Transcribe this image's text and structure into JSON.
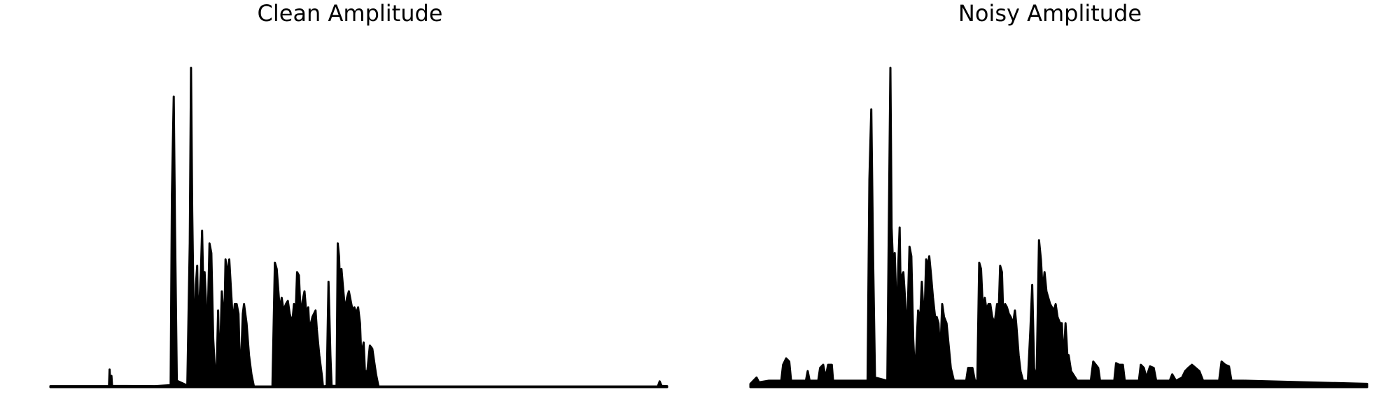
{
  "chart_data": [
    {
      "type": "area",
      "title": "Clean Amplitude",
      "xlabel": "",
      "ylabel": "",
      "axes_visible": false,
      "grid": false,
      "fill": "#000000",
      "x_range": [
        0,
        1000
      ],
      "y_range": [
        0,
        1.0
      ],
      "series": [
        {
          "values": [
            [
              0,
              0.003
            ],
            [
              95,
              0.003
            ],
            [
              96,
              0.055
            ],
            [
              97,
              0.01
            ],
            [
              99,
              0.035
            ],
            [
              100,
              0.004
            ],
            [
              170,
              0.003
            ],
            [
              195,
              0.006
            ],
            [
              197,
              0.6
            ],
            [
              200,
              0.91
            ],
            [
              202,
              0.5
            ],
            [
              205,
              0.02
            ],
            [
              222,
              0.005
            ],
            [
              226,
              0.45
            ],
            [
              228,
              1.0
            ],
            [
              230,
              0.55
            ],
            [
              233,
              0.12
            ],
            [
              236,
              0.32
            ],
            [
              238,
              0.38
            ],
            [
              240,
              0.12
            ],
            [
              242,
              0.28
            ],
            [
              244,
              0.36
            ],
            [
              246,
              0.49
            ],
            [
              248,
              0.3
            ],
            [
              250,
              0.36
            ],
            [
              252,
              0.28
            ],
            [
              254,
              0.12
            ],
            [
              258,
              0.45
            ],
            [
              261,
              0.42
            ],
            [
              264,
              0.15
            ],
            [
              268,
              0.01
            ],
            [
              270,
              0.08
            ],
            [
              272,
              0.24
            ],
            [
              274,
              0.05
            ],
            [
              276,
              0.16
            ],
            [
              278,
              0.3
            ],
            [
              282,
              0.19
            ],
            [
              284,
              0.4
            ],
            [
              287,
              0.35
            ],
            [
              290,
              0.4
            ],
            [
              293,
              0.3
            ],
            [
              296,
              0.2
            ],
            [
              299,
              0.26
            ],
            [
              302,
              0.26
            ],
            [
              305,
              0.23
            ],
            [
              308,
              0.01
            ],
            [
              312,
              0.23
            ],
            [
              314,
              0.26
            ],
            [
              318,
              0.2
            ],
            [
              322,
              0.1
            ],
            [
              326,
              0.04
            ],
            [
              330,
              0.002
            ],
            [
              360,
              0.002
            ],
            [
              364,
              0.39
            ],
            [
              367,
              0.37
            ],
            [
              372,
              0.24
            ],
            [
              375,
              0.28
            ],
            [
              378,
              0.24
            ],
            [
              382,
              0.26
            ],
            [
              385,
              0.27
            ],
            [
              388,
              0.23
            ],
            [
              392,
              0.2
            ],
            [
              395,
              0.26
            ],
            [
              397,
              0.19
            ],
            [
              400,
              0.36
            ],
            [
              403,
              0.35
            ],
            [
              406,
              0.22
            ],
            [
              409,
              0.27
            ],
            [
              412,
              0.3
            ],
            [
              415,
              0.23
            ],
            [
              418,
              0.25
            ],
            [
              420,
              0.18
            ],
            [
              425,
              0.22
            ],
            [
              430,
              0.24
            ],
            [
              432,
              0.18
            ],
            [
              436,
              0.1
            ],
            [
              440,
              0.04
            ],
            [
              442,
              0.002
            ],
            [
              448,
              0.004
            ],
            [
              451,
              0.33
            ],
            [
              454,
              0.1
            ],
            [
              456,
              0.004
            ],
            [
              464,
              0.004
            ],
            [
              466,
              0.45
            ],
            [
              468,
              0.41
            ],
            [
              470,
              0.3
            ],
            [
              472,
              0.37
            ],
            [
              475,
              0.3
            ],
            [
              478,
              0.24
            ],
            [
              481,
              0.28
            ],
            [
              484,
              0.3
            ],
            [
              487,
              0.27
            ],
            [
              490,
              0.24
            ],
            [
              493,
              0.25
            ],
            [
              496,
              0.23
            ],
            [
              499,
              0.25
            ],
            [
              502,
              0.2
            ],
            [
              504,
              0.1
            ],
            [
              508,
              0.14
            ],
            [
              510,
              0.05
            ],
            [
              514,
              0.05
            ],
            [
              518,
              0.13
            ],
            [
              522,
              0.12
            ],
            [
              525,
              0.08
            ],
            [
              528,
              0.04
            ],
            [
              532,
              0.002
            ],
            [
              985,
              0.002
            ],
            [
              988,
              0.018
            ],
            [
              991,
              0.004
            ],
            [
              1000,
              0.003
            ]
          ]
        }
      ]
    },
    {
      "type": "area",
      "title": "Noisy Amplitude",
      "xlabel": "",
      "ylabel": "",
      "axes_visible": false,
      "grid": false,
      "fill": "#000000",
      "x_range": [
        0,
        1000
      ],
      "y_range": [
        0,
        1.0
      ],
      "series": [
        {
          "values": [
            [
              0,
              0.01
            ],
            [
              10,
              0.03
            ],
            [
              14,
              0.015
            ],
            [
              30,
              0.02
            ],
            [
              50,
              0.02
            ],
            [
              53,
              0.07
            ],
            [
              58,
              0.09
            ],
            [
              63,
              0.08
            ],
            [
              66,
              0.02
            ],
            [
              90,
              0.02
            ],
            [
              93,
              0.05
            ],
            [
              96,
              0.02
            ],
            [
              110,
              0.02
            ],
            [
              113,
              0.06
            ],
            [
              118,
              0.07
            ],
            [
              122,
              0.03
            ],
            [
              126,
              0.07
            ],
            [
              132,
              0.07
            ],
            [
              134,
              0.02
            ],
            [
              190,
              0.02
            ],
            [
              193,
              0.65
            ],
            [
              196,
              0.87
            ],
            [
              199,
              0.4
            ],
            [
              202,
              0.03
            ],
            [
              222,
              0.02
            ],
            [
              225,
              0.6
            ],
            [
              227,
              1.0
            ],
            [
              229,
              0.5
            ],
            [
              232,
              0.35
            ],
            [
              234,
              0.42
            ],
            [
              236,
              0.3
            ],
            [
              238,
              0.2
            ],
            [
              240,
              0.39
            ],
            [
              242,
              0.5
            ],
            [
              244,
              0.25
            ],
            [
              246,
              0.35
            ],
            [
              248,
              0.36
            ],
            [
              250,
              0.3
            ],
            [
              254,
              0.16
            ],
            [
              258,
              0.44
            ],
            [
              261,
              0.41
            ],
            [
              264,
              0.15
            ],
            [
              267,
              0.03
            ],
            [
              272,
              0.24
            ],
            [
              275,
              0.2
            ],
            [
              278,
              0.33
            ],
            [
              282,
              0.19
            ],
            [
              285,
              0.4
            ],
            [
              288,
              0.38
            ],
            [
              290,
              0.41
            ],
            [
              293,
              0.35
            ],
            [
              296,
              0.28
            ],
            [
              300,
              0.21
            ],
            [
              302,
              0.22
            ],
            [
              305,
              0.2
            ],
            [
              308,
              0.1
            ],
            [
              311,
              0.26
            ],
            [
              314,
              0.22
            ],
            [
              318,
              0.2
            ],
            [
              322,
              0.12
            ],
            [
              325,
              0.06
            ],
            [
              330,
              0.02
            ],
            [
              350,
              0.02
            ],
            [
              353,
              0.06
            ],
            [
              360,
              0.06
            ],
            [
              364,
              0.02
            ],
            [
              368,
              0.02
            ],
            [
              371,
              0.39
            ],
            [
              374,
              0.37
            ],
            [
              377,
              0.24
            ],
            [
              380,
              0.28
            ],
            [
              383,
              0.24
            ],
            [
              386,
              0.26
            ],
            [
              389,
              0.26
            ],
            [
              392,
              0.22
            ],
            [
              396,
              0.2
            ],
            [
              400,
              0.26
            ],
            [
              402,
              0.2
            ],
            [
              405,
              0.38
            ],
            [
              408,
              0.36
            ],
            [
              410,
              0.22
            ],
            [
              413,
              0.26
            ],
            [
              416,
              0.25
            ],
            [
              419,
              0.23
            ],
            [
              422,
              0.22
            ],
            [
              426,
              0.2
            ],
            [
              429,
              0.24
            ],
            [
              431,
              0.2
            ],
            [
              435,
              0.1
            ],
            [
              438,
              0.05
            ],
            [
              442,
              0.02
            ],
            [
              450,
              0.02
            ],
            [
              454,
              0.18
            ],
            [
              457,
              0.32
            ],
            [
              460,
              0.06
            ],
            [
              464,
              0.02
            ],
            [
              468,
              0.46
            ],
            [
              471,
              0.4
            ],
            [
              474,
              0.3
            ],
            [
              477,
              0.36
            ],
            [
              480,
              0.3
            ],
            [
              483,
              0.28
            ],
            [
              486,
              0.26
            ],
            [
              489,
              0.25
            ],
            [
              492,
              0.24
            ],
            [
              495,
              0.26
            ],
            [
              498,
              0.22
            ],
            [
              502,
              0.2
            ],
            [
              505,
              0.2
            ],
            [
              508,
              0.08
            ],
            [
              511,
              0.2
            ],
            [
              514,
              0.1
            ],
            [
              516,
              0.1
            ],
            [
              520,
              0.05
            ],
            [
              530,
              0.02
            ],
            [
              552,
              0.02
            ],
            [
              556,
              0.08
            ],
            [
              560,
              0.07
            ],
            [
              564,
              0.06
            ],
            [
              567,
              0.02
            ],
            [
              590,
              0.02
            ],
            [
              593,
              0.075
            ],
            [
              598,
              0.07
            ],
            [
              604,
              0.07
            ],
            [
              607,
              0.02
            ],
            [
              630,
              0.02
            ],
            [
              633,
              0.07
            ],
            [
              638,
              0.06
            ],
            [
              642,
              0.03
            ],
            [
              648,
              0.065
            ],
            [
              654,
              0.06
            ],
            [
              658,
              0.02
            ],
            [
              680,
              0.02
            ],
            [
              684,
              0.04
            ],
            [
              690,
              0.02
            ],
            [
              700,
              0.03
            ],
            [
              705,
              0.05
            ],
            [
              710,
              0.06
            ],
            [
              716,
              0.07
            ],
            [
              722,
              0.06
            ],
            [
              728,
              0.05
            ],
            [
              734,
              0.02
            ],
            [
              760,
              0.02
            ],
            [
              764,
              0.08
            ],
            [
              770,
              0.07
            ],
            [
              776,
              0.065
            ],
            [
              780,
              0.02
            ],
            [
              800,
              0.02
            ],
            [
              1000,
              0.01
            ]
          ]
        }
      ]
    }
  ]
}
